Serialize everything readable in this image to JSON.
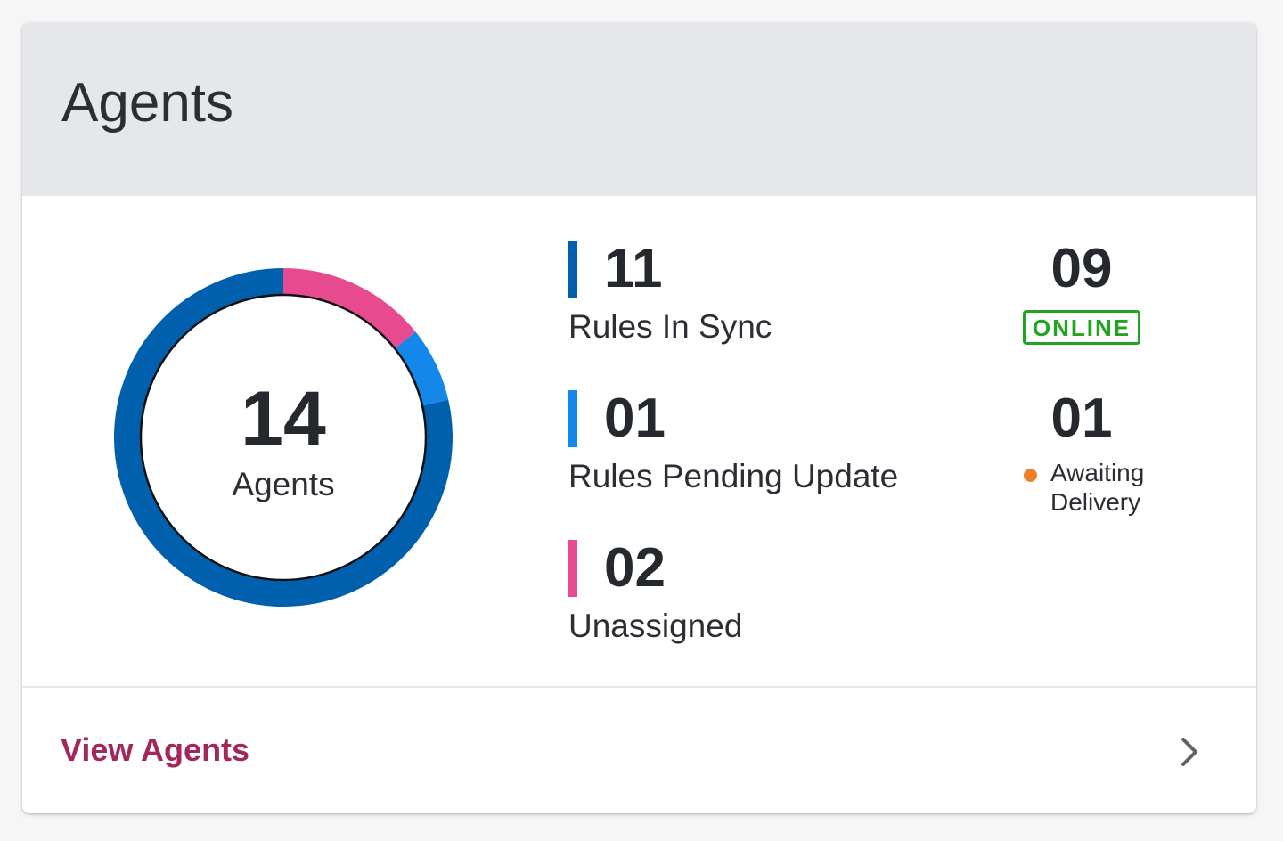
{
  "card": {
    "title": "Agents"
  },
  "donut": {
    "total": "14",
    "label": "Agents",
    "segments": [
      {
        "name": "Unassigned",
        "value": 2,
        "color": "#e84a8f"
      },
      {
        "name": "Rules Pending Update",
        "value": 1,
        "color": "#1488ea"
      },
      {
        "name": "Rules In Sync",
        "value": 11,
        "color": "#0060ae"
      }
    ]
  },
  "stats": [
    {
      "value": "11",
      "label": "Rules In Sync",
      "color": "#0060ae"
    },
    {
      "value": "01",
      "label": "Rules Pending Update",
      "color": "#1488ea"
    },
    {
      "value": "02",
      "label": "Unassigned",
      "color": "#e84a8f"
    }
  ],
  "status": {
    "online_count": "09",
    "online_badge": "ONLINE",
    "online_color": "#22a321",
    "awaiting_count": "01",
    "awaiting_label_line1": "Awaiting",
    "awaiting_label_line2": "Delivery",
    "awaiting_color": "#f07f25"
  },
  "footer": {
    "link_label": "View Agents",
    "chevron_icon": "chevron-right-icon",
    "link_color": "#a3275a"
  }
}
